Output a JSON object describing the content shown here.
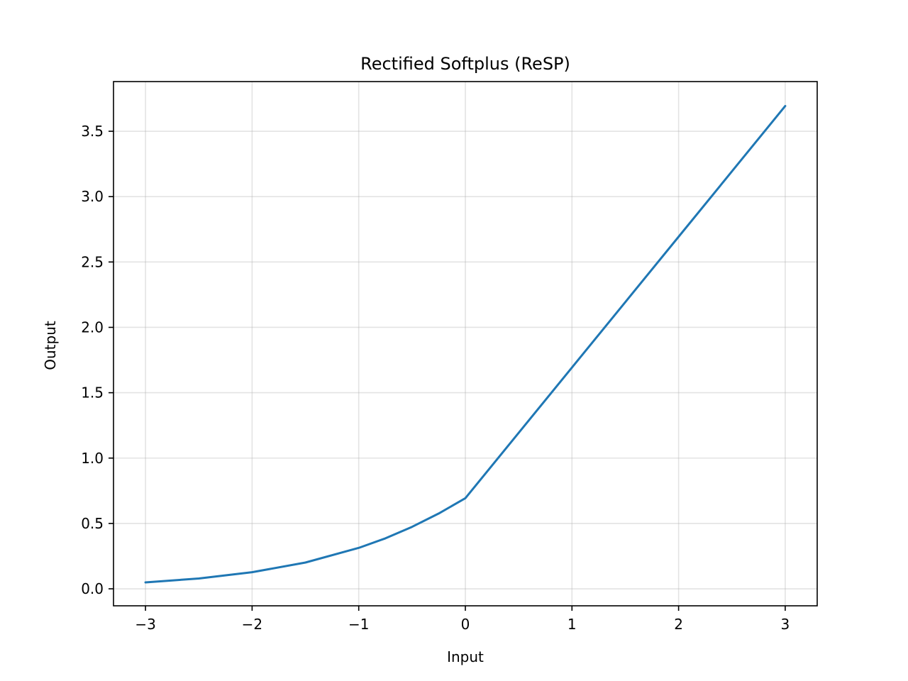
{
  "chart_data": {
    "type": "line",
    "title": "Rectified Softplus (ReSP)",
    "xlabel": "Input",
    "ylabel": "Output",
    "xlim": [
      -3.3,
      3.3
    ],
    "ylim": [
      -0.13,
      3.88
    ],
    "xticks": [
      -3,
      -2,
      -1,
      0,
      1,
      2,
      3
    ],
    "xtick_labels": [
      "−3",
      "−2",
      "−1",
      "0",
      "1",
      "2",
      "3"
    ],
    "yticks": [
      0.0,
      0.5,
      1.0,
      1.5,
      2.0,
      2.5,
      3.0,
      3.5
    ],
    "ytick_labels": [
      "0.0",
      "0.5",
      "1.0",
      "1.5",
      "2.0",
      "2.5",
      "3.0",
      "3.5"
    ],
    "grid": true,
    "series": [
      {
        "color": "#1f77b4",
        "x": [
          -3.0,
          -2.5,
          -2.0,
          -1.5,
          -1.0,
          -0.75,
          -0.5,
          -0.25,
          0.0,
          0.5,
          1.0,
          1.5,
          2.0,
          2.5,
          3.0
        ],
        "y": [
          0.049,
          0.079,
          0.127,
          0.201,
          0.313,
          0.386,
          0.474,
          0.576,
          0.693,
          1.193,
          1.693,
          2.193,
          2.693,
          3.193,
          3.693
        ]
      }
    ]
  }
}
